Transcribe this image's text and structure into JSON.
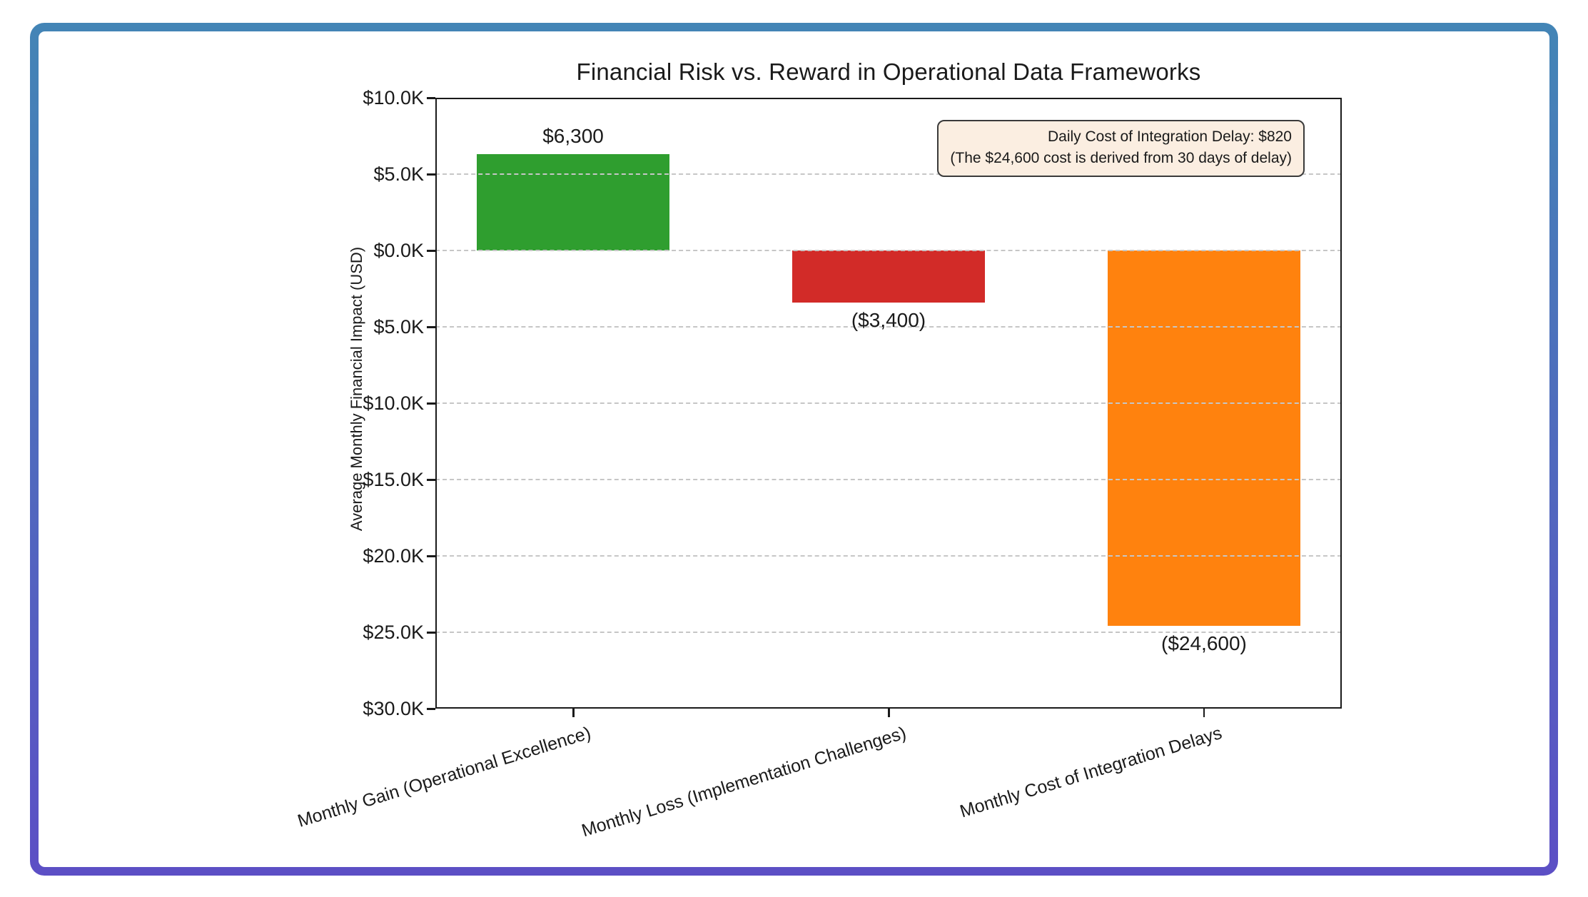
{
  "frame": {
    "border_gradient_top": "#4385b6",
    "border_gradient_bottom": "#5c4fc5"
  },
  "chart_data": {
    "type": "bar",
    "title": "Financial Risk vs. Reward in Operational Data Frameworks",
    "ylabel": "Average Monthly Financial Impact (USD)",
    "categories": [
      "Monthly Gain (Operational Excellence)",
      "Monthly Loss (Implementation Challenges)",
      "Monthly Cost of Integration Delays"
    ],
    "values": [
      6300,
      -3400,
      -24600
    ],
    "value_labels": [
      "$6,300",
      "($3,400)",
      "($24,600)"
    ],
    "bar_colors": [
      "#2f9e2f",
      "#d22b28",
      "#ff820e"
    ],
    "ylim": [
      -30000,
      10000
    ],
    "yticks": [
      {
        "value": 10000,
        "label": "$10.0K"
      },
      {
        "value": 5000,
        "label": "$5.0K"
      },
      {
        "value": 0,
        "label": "$0.0K"
      },
      {
        "value": -5000,
        "label": "$5.0K"
      },
      {
        "value": -10000,
        "label": "$10.0K"
      },
      {
        "value": -15000,
        "label": "$15.0K"
      },
      {
        "value": -20000,
        "label": "$20.0K"
      },
      {
        "value": -25000,
        "label": "$25.0K"
      },
      {
        "value": -30000,
        "label": "$30.0K"
      }
    ],
    "grid": {
      "axis": "y",
      "style": "dashed",
      "color": "#c6c6c6",
      "on_top_of_bars": true
    },
    "annotation": {
      "line1": "Daily Cost of Integration Delay: $820",
      "line2": "(The $24,600 cost is derived from 30 days of delay)",
      "background": "#fbeee1",
      "border_color": "#3a3a3a"
    }
  }
}
